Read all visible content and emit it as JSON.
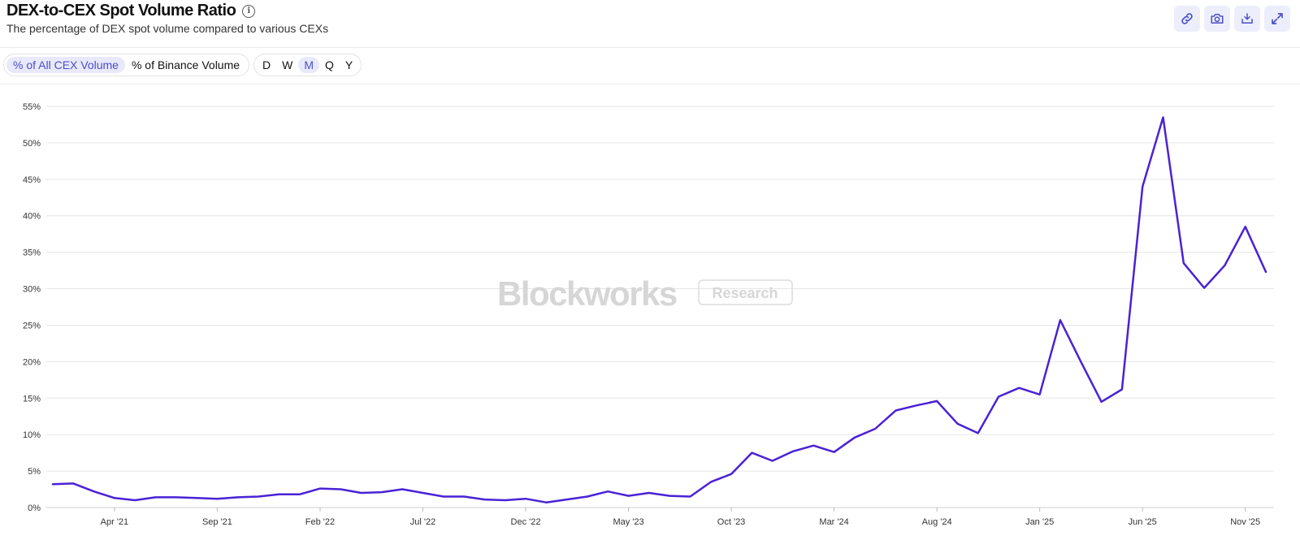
{
  "header": {
    "title": "DEX-to-CEX Spot Volume Ratio",
    "subtitle": "The percentage of DEX spot volume compared to various CEXs",
    "info_icon": "info-icon",
    "actions": [
      {
        "name": "link-icon"
      },
      {
        "name": "camera-icon"
      },
      {
        "name": "download-icon"
      },
      {
        "name": "expand-icon"
      }
    ]
  },
  "controls": {
    "metric_options": [
      "% of All CEX Volume",
      "% of Binance Volume"
    ],
    "metric_selected": "% of All CEX Volume",
    "period_options": [
      "D",
      "W",
      "M",
      "Q",
      "Y"
    ],
    "period_selected": "M"
  },
  "watermark": {
    "main": "Blockworks",
    "sub": "Research"
  },
  "colors": {
    "line": "#4a22d6",
    "accent": "#4b4fc8",
    "button_bg": "#eceefc",
    "grid": "#e6e6e6"
  },
  "chart_data": {
    "type": "line",
    "title": "DEX-to-CEX Spot Volume Ratio",
    "xlabel": "",
    "ylabel": "",
    "ylim": [
      0,
      55
    ],
    "y_ticks": [
      "0%",
      "5%",
      "10%",
      "15%",
      "20%",
      "25%",
      "30%",
      "35%",
      "40%",
      "45%",
      "50%",
      "55%"
    ],
    "x_tick_labels": [
      "Apr '21",
      "Sep '21",
      "Feb '22",
      "Jul '22",
      "Dec '22",
      "May '23",
      "Oct '23",
      "Mar '24",
      "Aug '24",
      "Jan '25",
      "Jun '25",
      "Nov '25"
    ],
    "x_tick_indices": [
      3,
      8,
      13,
      18,
      23,
      28,
      33,
      38,
      43,
      48,
      53,
      58
    ],
    "grid": true,
    "legend": "none",
    "series": [
      {
        "values": [
          3.2,
          3.3,
          2.2,
          1.3,
          1.0,
          1.4,
          1.4,
          1.3,
          1.2,
          1.4,
          1.5,
          1.8,
          1.8,
          2.6,
          2.5,
          2.0,
          2.1,
          2.5,
          2.0,
          1.5,
          1.5,
          1.1,
          1.0,
          1.2,
          0.7,
          1.1,
          1.5,
          2.2,
          1.6,
          2.0,
          1.6,
          1.5,
          3.5,
          4.6,
          7.5,
          6.4,
          7.7,
          8.5,
          7.6,
          9.6,
          10.8,
          13.3,
          14.0,
          14.6,
          11.5,
          10.2,
          15.2,
          16.4,
          15.5,
          25.7,
          20.0,
          14.5,
          16.2,
          44.0,
          53.5,
          33.5,
          30.1,
          33.2,
          38.5,
          32.3
        ]
      }
    ]
  }
}
